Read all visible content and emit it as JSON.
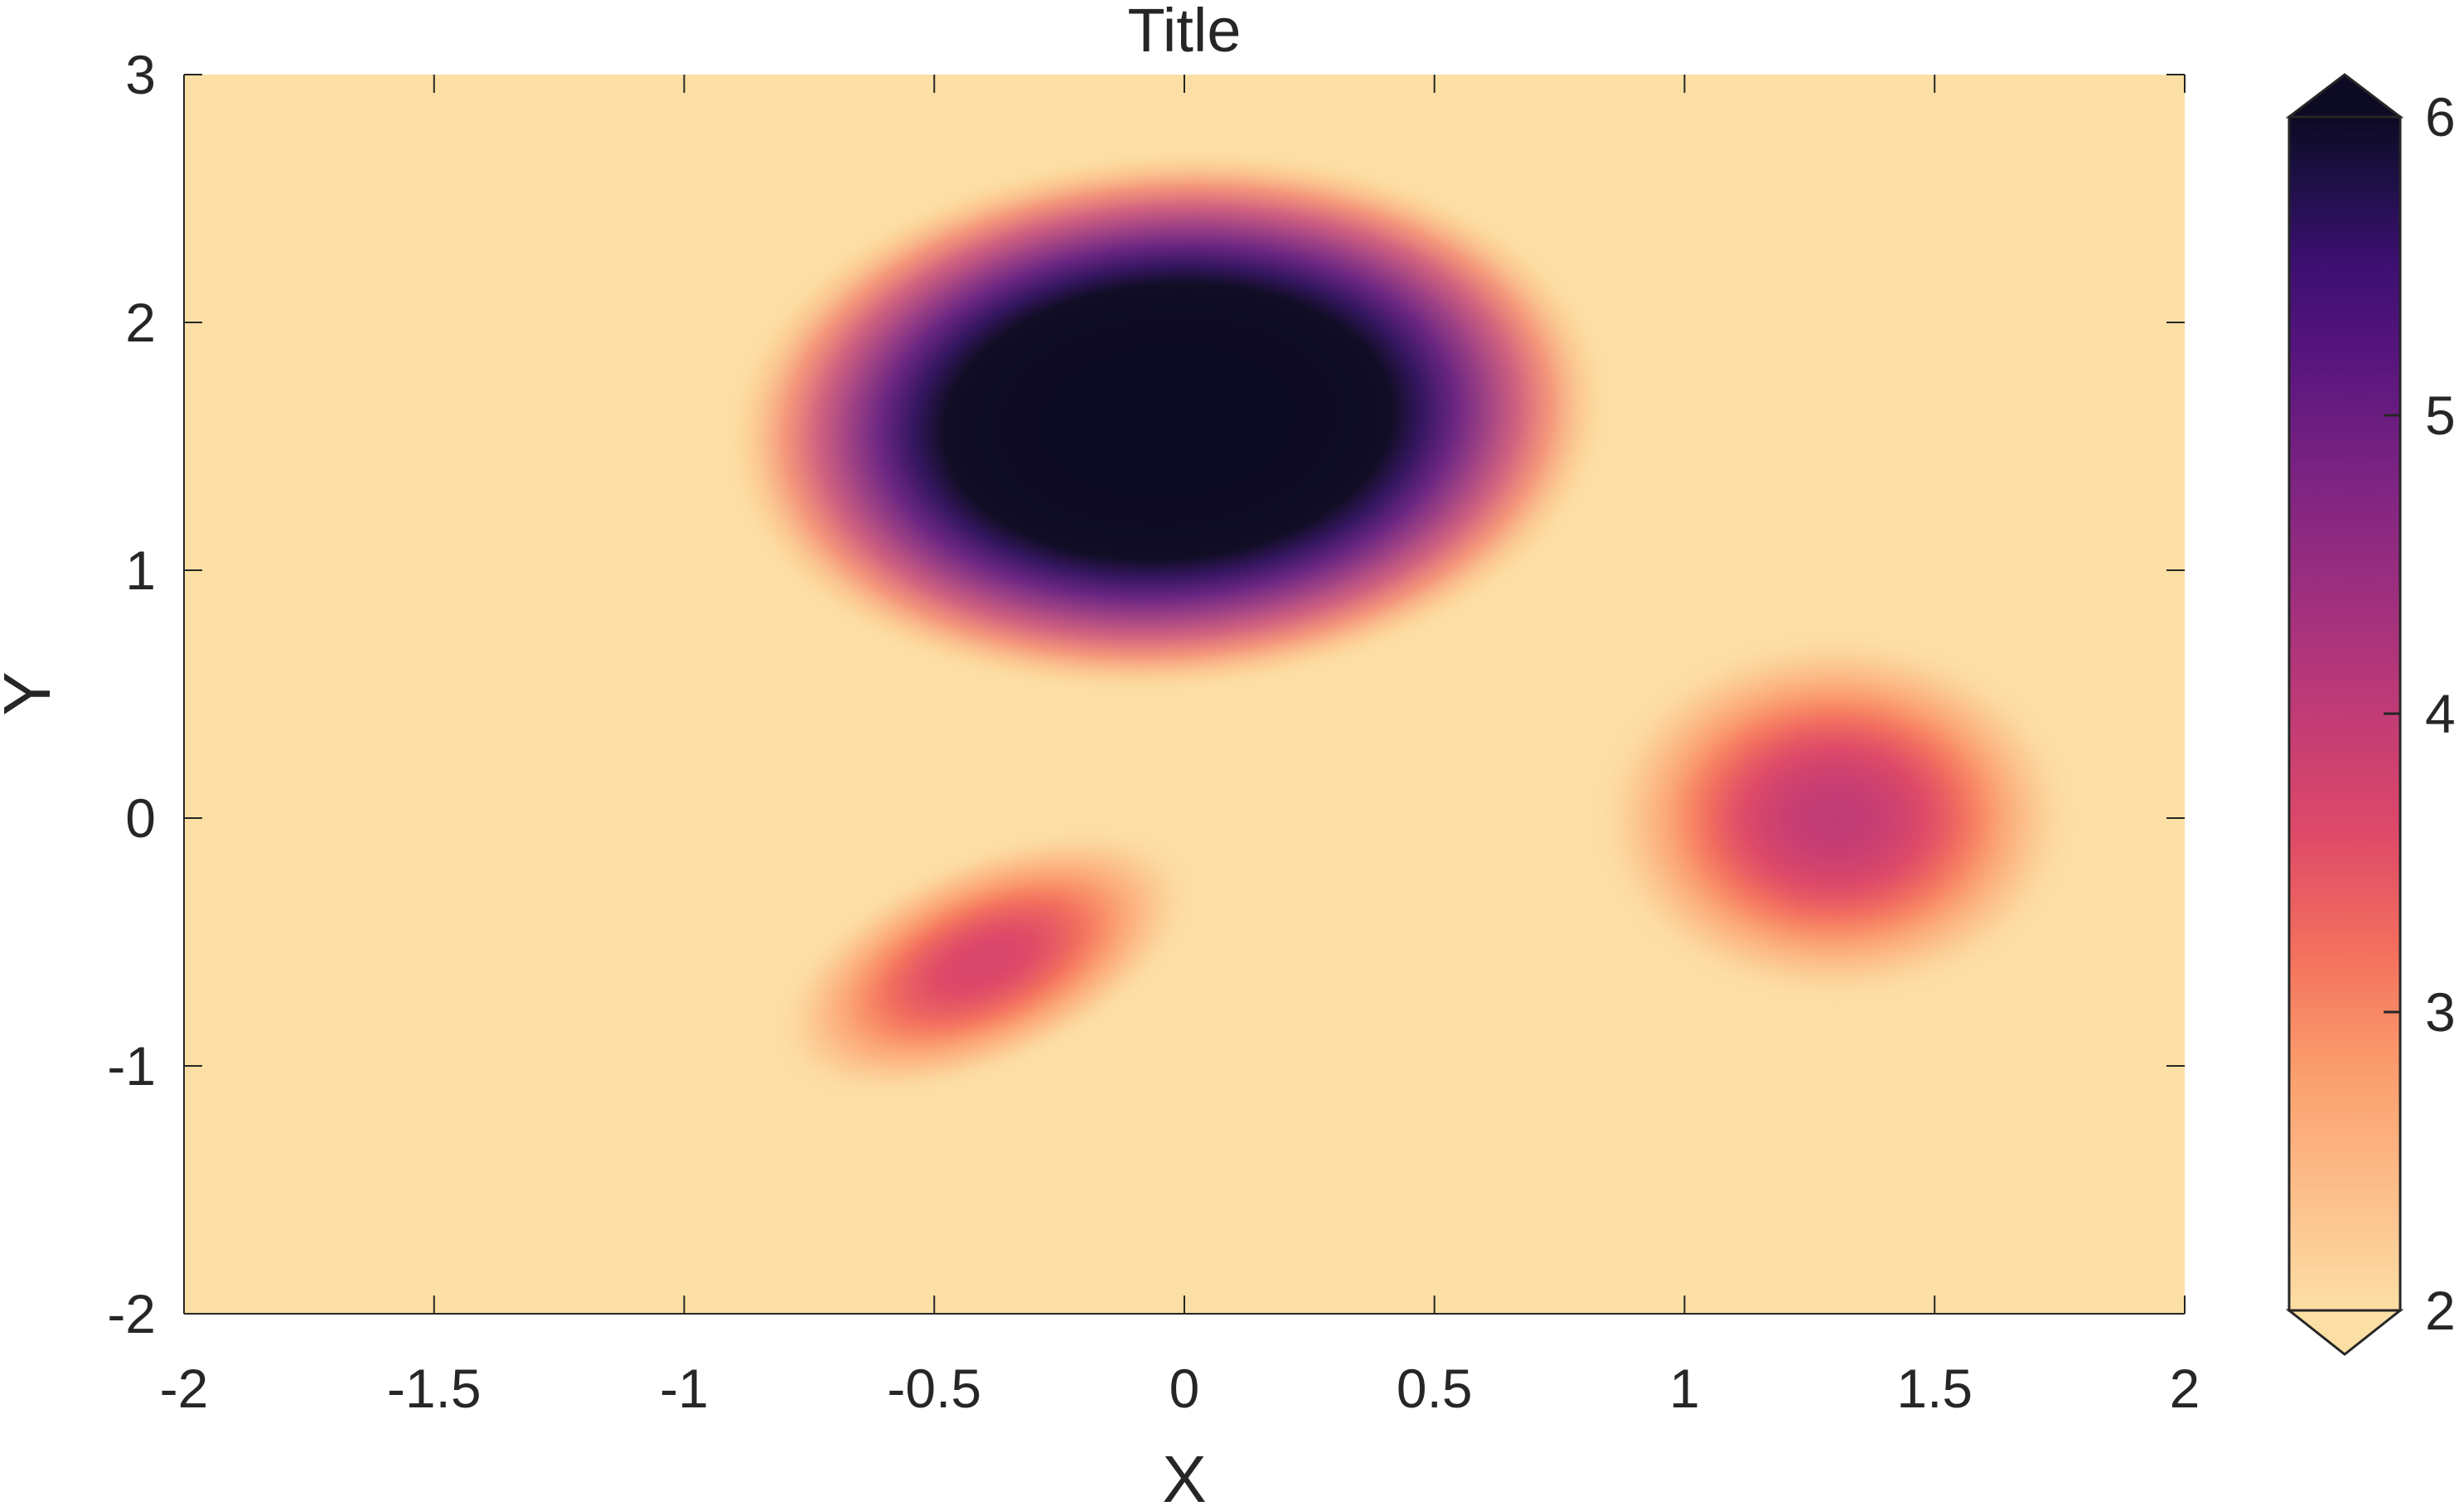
{
  "chart_data": {
    "type": "heatmap",
    "title": "Title",
    "xlabel": "X",
    "ylabel": "Y",
    "xlim": [
      -2,
      2
    ],
    "ylim": [
      -2,
      3
    ],
    "xticks": [
      -2,
      -1.5,
      -1,
      -0.5,
      0,
      0.5,
      1,
      1.5,
      2
    ],
    "xtick_labels": [
      "-2",
      "-1.5",
      "-1",
      "-0.5",
      "0",
      "0.5",
      "1",
      "1.5",
      "2"
    ],
    "yticks": [
      -2,
      -1,
      0,
      1,
      2,
      3
    ],
    "ytick_labels": [
      "-2",
      "-1",
      "0",
      "1",
      "2",
      "3"
    ],
    "grid": false,
    "colorbar": {
      "colormap": "magma (reversed)",
      "clim": [
        2,
        6
      ],
      "ticks": [
        2,
        3,
        4,
        5,
        6
      ],
      "tick_labels": [
        "2",
        "3",
        "4",
        "5",
        "6"
      ],
      "extend": "both",
      "placement": "right"
    },
    "background_value": 2,
    "peaks": [
      {
        "x": 0.0,
        "y": 1.6,
        "peak_value": 6.0
      },
      {
        "x": 1.3,
        "y": 0.0,
        "peak_value": 4.0
      },
      {
        "x": -0.4,
        "y": -0.6,
        "peak_value": 3.7
      }
    ]
  }
}
